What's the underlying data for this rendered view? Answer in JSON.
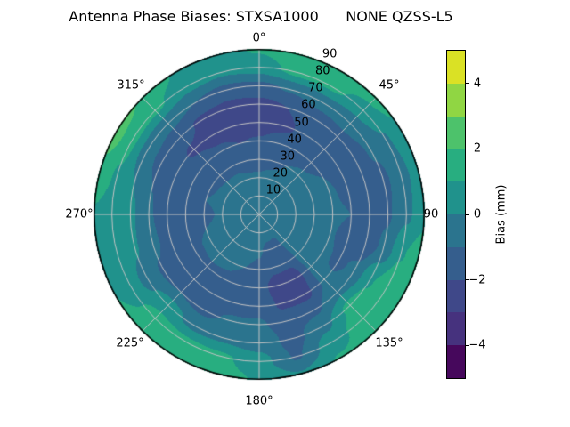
{
  "title": "Antenna Phase Biases: STXSA1000      NONE QZSS-L5",
  "chart_data": {
    "type": "heatmap",
    "projection": "polar",
    "title": "Antenna Phase Biases: STXSA1000      NONE QZSS-L5",
    "background": "#ffffff",
    "grid_color": "#c4c4c4",
    "outline_color": "#000000",
    "angular_ticks": [
      {
        "angle": 0,
        "label": "0°"
      },
      {
        "angle": 45,
        "label": "45°"
      },
      {
        "angle": 90,
        "label": "90"
      },
      {
        "angle": 135,
        "label": "135°"
      },
      {
        "angle": 180,
        "label": "180°"
      },
      {
        "angle": 225,
        "label": "225°"
      },
      {
        "angle": 270,
        "label": "270°"
      },
      {
        "angle": 315,
        "label": "315°"
      }
    ],
    "radial_ticks": [
      {
        "value": 10,
        "label": "10"
      },
      {
        "value": 20,
        "label": "20"
      },
      {
        "value": 30,
        "label": "30"
      },
      {
        "value": 40,
        "label": "40"
      },
      {
        "value": 50,
        "label": "50"
      },
      {
        "value": 60,
        "label": "60"
      },
      {
        "value": 70,
        "label": "70"
      },
      {
        "value": 80,
        "label": "80"
      },
      {
        "value": 90,
        "label": "90"
      }
    ],
    "radial_max": 90,
    "levels": [
      -5,
      -4,
      -3,
      -2,
      -1,
      0,
      1,
      2,
      3,
      4,
      5
    ],
    "colors": [
      "#46085c",
      "#46327e",
      "#3f4889",
      "#355e8d",
      "#2b748e",
      "#20928c",
      "#28ae80",
      "#4dc26b",
      "#90d643",
      "#dae125"
    ],
    "colorbar": {
      "label": "Bias (mm)",
      "range": [
        -5,
        5
      ],
      "ticks": [
        {
          "value": 4,
          "label": "4"
        },
        {
          "value": 2,
          "label": "2"
        },
        {
          "value": 0,
          "label": "0"
        },
        {
          "value": -2,
          "label": "−2"
        },
        {
          "value": -4,
          "label": "−4"
        }
      ]
    },
    "grid": {
      "azimuths_deg": [
        0,
        15,
        30,
        45,
        60,
        75,
        90,
        105,
        120,
        135,
        150,
        165,
        180,
        195,
        210,
        225,
        240,
        255,
        270,
        285,
        300,
        315,
        330,
        345
      ],
      "radii": [
        0,
        10,
        20,
        30,
        40,
        50,
        60,
        70,
        80,
        90
      ],
      "values": [
        [
          -0.5,
          -0.6,
          -0.9,
          -1.3,
          -1.9,
          -2.6,
          -2.3,
          -1.2,
          0.5,
          1.1
        ],
        [
          -0.5,
          -0.6,
          -0.8,
          -1.2,
          -1.6,
          -2.2,
          -2.0,
          -0.9,
          1.3,
          1.8
        ],
        [
          -0.5,
          -0.6,
          -0.7,
          -1.0,
          -1.4,
          -1.8,
          -1.5,
          -0.6,
          1.2,
          1.7
        ],
        [
          -0.5,
          -0.5,
          -0.7,
          -0.9,
          -1.2,
          -1.5,
          -1.3,
          -0.6,
          0.6,
          1.4
        ],
        [
          -0.5,
          -0.5,
          -0.6,
          -0.8,
          -1.0,
          -1.3,
          -1.5,
          -0.9,
          -0.1,
          0.8
        ],
        [
          -0.5,
          -0.5,
          -0.6,
          -0.7,
          -0.9,
          -1.2,
          -1.5,
          -1.2,
          -0.4,
          0.6
        ],
        [
          -0.5,
          -0.5,
          -0.5,
          -0.6,
          -0.8,
          -1.0,
          -1.3,
          -1.1,
          -0.2,
          0.7
        ],
        [
          -0.5,
          -0.5,
          -0.6,
          -0.7,
          -0.9,
          -1.4,
          -1.6,
          -0.8,
          0.9,
          1.5
        ],
        [
          -0.5,
          -0.5,
          -0.6,
          -0.7,
          -0.8,
          -1.2,
          -0.8,
          0.9,
          1.6,
          1.7
        ],
        [
          -0.5,
          -0.5,
          -0.6,
          -0.7,
          -0.8,
          -0.8,
          -0.3,
          1.3,
          1.5,
          1.4
        ],
        [
          -0.5,
          -0.7,
          -1.3,
          -1.8,
          -2.5,
          -2.3,
          -1.2,
          -0.3,
          0.6,
          1.1
        ],
        [
          -0.5,
          -0.7,
          -1.2,
          -1.7,
          -2.6,
          -2.2,
          -1.4,
          -1.3,
          -1.1,
          0.1
        ],
        [
          -0.5,
          -0.6,
          -0.9,
          -1.2,
          -1.5,
          -1.3,
          -0.9,
          -0.4,
          0.4,
          0.9
        ],
        [
          -0.5,
          -0.5,
          -0.7,
          -1.0,
          -1.3,
          -1.3,
          -0.9,
          -0.2,
          1.2,
          1.5
        ],
        [
          -0.5,
          -0.5,
          -0.6,
          -0.9,
          -1.1,
          -1.4,
          -1.2,
          -0.3,
          1.3,
          1.6
        ],
        [
          -0.5,
          -0.5,
          -0.6,
          -0.8,
          -1.1,
          -1.4,
          -1.0,
          0.5,
          1.4,
          1.6
        ],
        [
          -0.5,
          -0.5,
          -0.6,
          -0.8,
          -1.2,
          -1.5,
          -1.1,
          -0.3,
          0.5,
          1.0
        ],
        [
          -0.5,
          -0.5,
          -0.7,
          -1.0,
          -1.4,
          -1.4,
          -0.8,
          0.1,
          0.6,
          0.9
        ],
        [
          -0.5,
          -0.6,
          -0.8,
          -1.3,
          -1.7,
          -1.5,
          -0.9,
          0.2,
          0.6,
          0.9
        ],
        [
          -0.5,
          -0.6,
          -0.7,
          -1.0,
          -1.4,
          -1.5,
          -1.0,
          0.0,
          0.9,
          1.6
        ],
        [
          -0.5,
          -0.6,
          -0.8,
          -1.1,
          -1.5,
          -1.8,
          -1.4,
          -0.4,
          1.3,
          2.6
        ],
        [
          -0.5,
          -0.6,
          -0.8,
          -1.2,
          -1.7,
          -2.1,
          -1.7,
          -0.6,
          1.2,
          1.9
        ],
        [
          -0.5,
          -0.6,
          -0.8,
          -1.2,
          -1.8,
          -2.4,
          -2.2,
          -1.0,
          0.4,
          0.9
        ],
        [
          -0.5,
          -0.6,
          -0.9,
          -1.3,
          -2.0,
          -2.7,
          -2.4,
          -1.3,
          0.2,
          0.7
        ]
      ]
    }
  }
}
